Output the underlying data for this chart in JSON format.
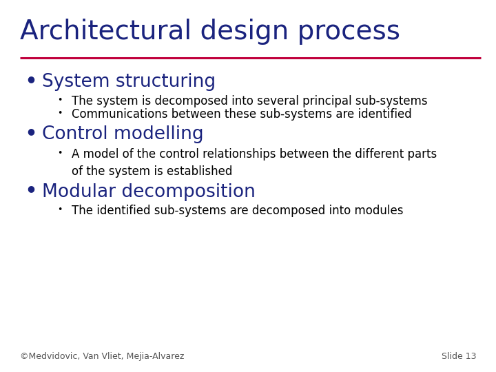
{
  "title": "Architectural design process",
  "title_color": "#1a237e",
  "title_fontsize": 28,
  "line_color": "#c0003c",
  "background_color": "#ffffff",
  "bullet1_text": "System structuring",
  "bullet1_sub": [
    "The system is decomposed into several principal sub-systems",
    "Communications between these sub-systems are identified"
  ],
  "bullet2_text": "Control modelling",
  "bullet2_sub": [
    "A model of the control relationships between the different parts\nof the system is established"
  ],
  "bullet3_text": "Modular decomposition",
  "bullet3_sub": [
    "The identified sub-systems are decomposed into modules"
  ],
  "bullet_color": "#1a237e",
  "bullet_fontsize": 19,
  "sub_fontsize": 12,
  "sub_color": "#000000",
  "footer_left": "©Medvidovic, Van Vliet, Mejia-Alvarez",
  "footer_right": "Slide 13",
  "footer_fontsize": 9,
  "footer_color": "#555555"
}
